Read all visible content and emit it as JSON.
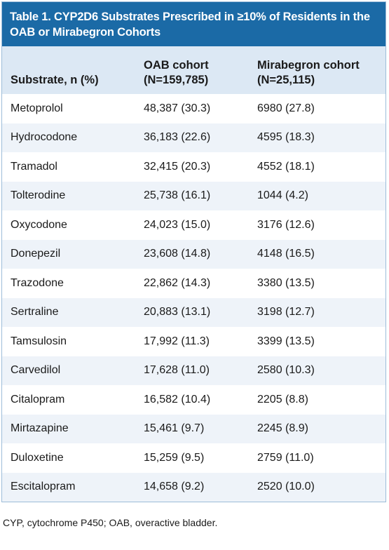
{
  "title": "Table 1. CYP2D6 Substrates Prescribed in ≥10% of Residents in the OAB or Mirabegron Cohorts",
  "table": {
    "headers": [
      [
        "Substrate, n (%)"
      ],
      [
        "OAB cohort",
        "(N=159,785)"
      ],
      [
        "Mirabegron cohort",
        "(N=25,115)"
      ]
    ],
    "rows": [
      [
        "Metoprolol",
        "48,387 (30.3)",
        "6980 (27.8)"
      ],
      [
        "Hydrocodone",
        "36,183 (22.6)",
        "4595 (18.3)"
      ],
      [
        "Tramadol",
        "32,415 (20.3)",
        "4552 (18.1)"
      ],
      [
        "Tolterodine",
        "25,738 (16.1)",
        "1044 (4.2)"
      ],
      [
        "Oxycodone",
        "24,023 (15.0)",
        "3176 (12.6)"
      ],
      [
        "Donepezil",
        "23,608 (14.8)",
        "4148 (16.5)"
      ],
      [
        "Trazodone",
        "22,862 (14.3)",
        "3380 (13.5)"
      ],
      [
        "Sertraline",
        "20,883 (13.1)",
        "3198 (12.7)"
      ],
      [
        "Tamsulosin",
        "17,992 (11.3)",
        "3399 (13.5)"
      ],
      [
        "Carvedilol",
        "17,628 (11.0)",
        "2580 (10.3)"
      ],
      [
        "Citalopram",
        "16,582 (10.4)",
        "2205 (8.8)"
      ],
      [
        "Mirtazapine",
        "15,461 (9.7)",
        "2245 (8.9)"
      ],
      [
        "Duloxetine",
        "15,259 (9.5)",
        "2759 (11.0)"
      ],
      [
        "Escitalopram",
        "14,658 (9.2)",
        "2520 (10.0)"
      ]
    ]
  },
  "footnote": "CYP, cytochrome P450; OAB, overactive bladder."
}
